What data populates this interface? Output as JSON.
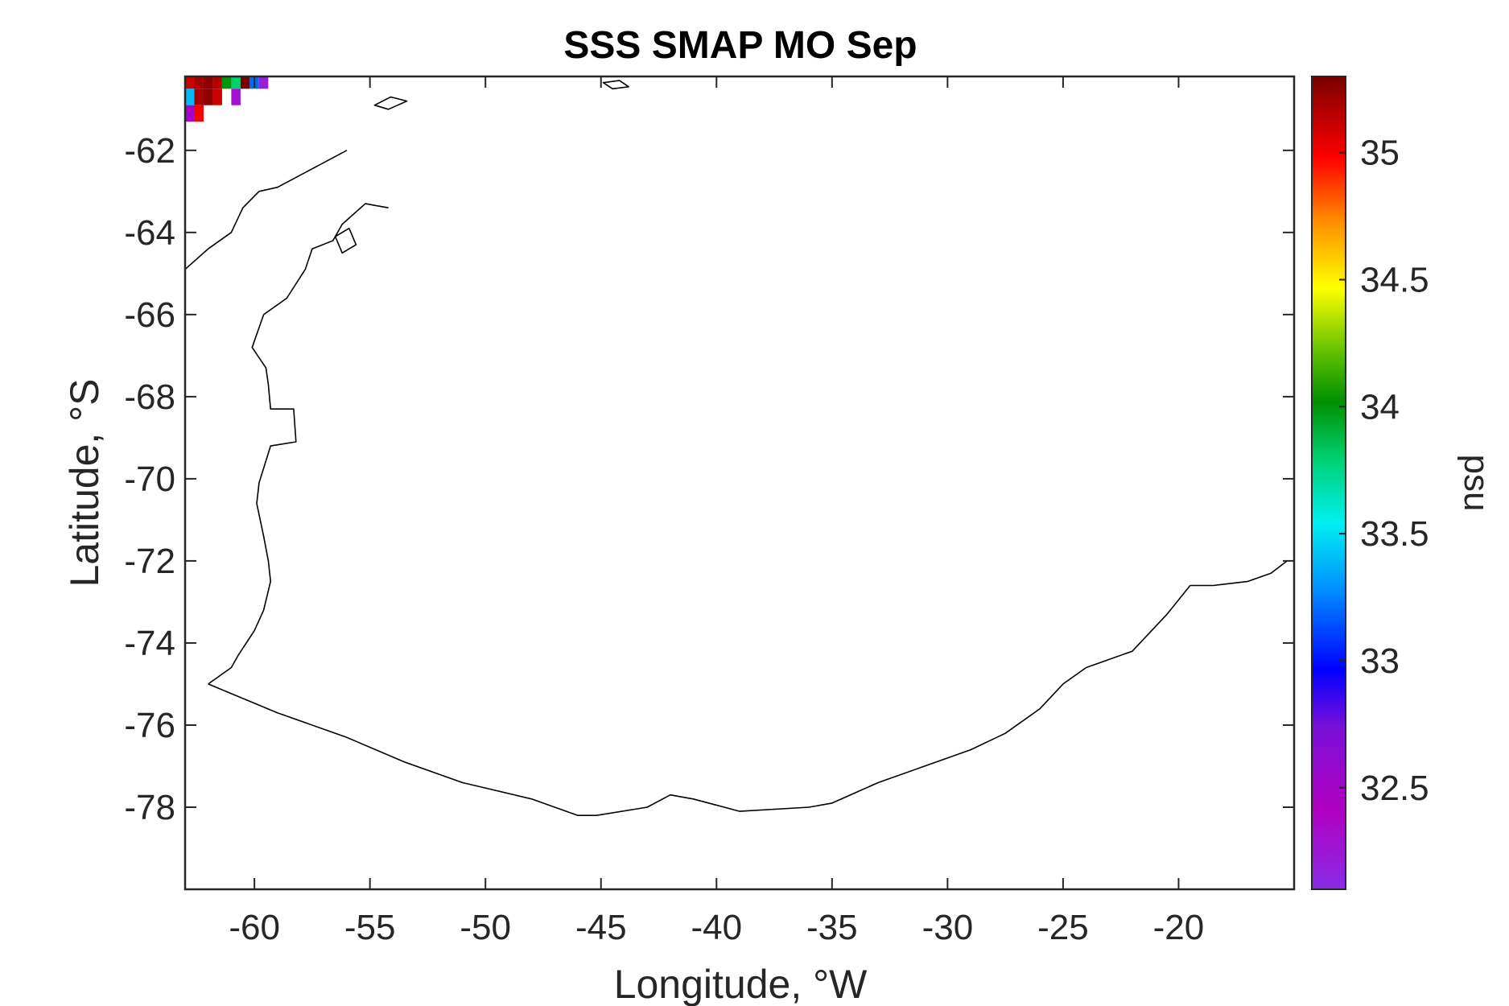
{
  "chart_data": {
    "type": "heatmap",
    "title": "SSS SMAP MO Sep",
    "xlabel": "Longitude, °W",
    "ylabel": "Latitude, °S",
    "xlim": [
      -63,
      -15
    ],
    "ylim": [
      -80,
      -60.2
    ],
    "x_ticks": [
      -60,
      -55,
      -50,
      -45,
      -40,
      -35,
      -30,
      -25,
      -20
    ],
    "x_tick_labels": [
      "-60",
      "-55",
      "-50",
      "-45",
      "-40",
      "-35",
      "-30",
      "-25",
      "-20"
    ],
    "y_ticks": [
      -62,
      -64,
      -66,
      -68,
      -70,
      -72,
      -74,
      -76,
      -78
    ],
    "y_tick_labels": [
      "-62",
      "-64",
      "-66",
      "-68",
      "-70",
      "-72",
      "-74",
      "-76",
      "-78"
    ],
    "colorbar": {
      "label": "psu",
      "range": [
        32.1,
        35.3
      ],
      "ticks": [
        32.5,
        33,
        33.5,
        34,
        34.5,
        35
      ],
      "tick_labels": [
        "32.5",
        "33",
        "33.5",
        "34",
        "34.5",
        "35"
      ],
      "colormap": "jet-like"
    },
    "coastline": [
      [
        -62,
        -75.0
      ],
      [
        -59,
        -75.7
      ],
      [
        -56,
        -76.3
      ],
      [
        -53.5,
        -76.9
      ],
      [
        -51,
        -77.4
      ],
      [
        -48,
        -77.8
      ],
      [
        -46,
        -78.2
      ],
      [
        -45.2,
        -78.2
      ],
      [
        -43,
        -78.0
      ],
      [
        -42,
        -77.7
      ],
      [
        -41,
        -77.8
      ],
      [
        -39,
        -78.1
      ],
      [
        -36,
        -78.0
      ],
      [
        -35,
        -77.9
      ],
      [
        -33,
        -77.4
      ],
      [
        -31,
        -77.0
      ],
      [
        -29,
        -76.6
      ],
      [
        -27.5,
        -76.2
      ],
      [
        -26,
        -75.6
      ],
      [
        -25,
        -75.0
      ],
      [
        -24,
        -74.6
      ],
      [
        -22,
        -74.2
      ],
      [
        -20.5,
        -73.3
      ],
      [
        -19.5,
        -72.6
      ],
      [
        -18.5,
        -72.6
      ],
      [
        -17,
        -72.5
      ],
      [
        -16,
        -72.3
      ],
      [
        -15.3,
        -72.0
      ]
    ],
    "peninsula_coast": [
      [
        -62,
        -75.0
      ],
      [
        -61,
        -74.6
      ],
      [
        -60.7,
        -74.3
      ],
      [
        -60,
        -73.7
      ],
      [
        -59.6,
        -73.2
      ],
      [
        -59.3,
        -72.5
      ],
      [
        -59.4,
        -72.0
      ],
      [
        -59.6,
        -71.4
      ],
      [
        -59.9,
        -70.6
      ],
      [
        -59.8,
        -70.1
      ],
      [
        -59.3,
        -69.2
      ],
      [
        -58.2,
        -69.1
      ],
      [
        -58.3,
        -68.3
      ],
      [
        -59.3,
        -68.3
      ],
      [
        -59.4,
        -67.7
      ],
      [
        -59.5,
        -67.3
      ],
      [
        -60.1,
        -66.8
      ],
      [
        -59.6,
        -66.0
      ],
      [
        -58.6,
        -65.6
      ],
      [
        -57.8,
        -64.9
      ],
      [
        -57.5,
        -64.4
      ],
      [
        -56.6,
        -64.2
      ],
      [
        -56.2,
        -63.8
      ],
      [
        -55.2,
        -63.3
      ],
      [
        -54.2,
        -63.4
      ]
    ],
    "peninsula_coast_2": [
      [
        -63,
        -64.9
      ],
      [
        -62,
        -64.4
      ],
      [
        -61,
        -64.0
      ],
      [
        -60.5,
        -63.4
      ],
      [
        -59.8,
        -63.0
      ],
      [
        -59.0,
        -62.9
      ],
      [
        -58.0,
        -62.6
      ],
      [
        -57.0,
        -62.3
      ],
      [
        -56.0,
        -62.0
      ]
    ],
    "islands": [
      [
        [
          -54.8,
          -60.9
        ],
        [
          -54.1,
          -60.7
        ],
        [
          -53.4,
          -60.8
        ],
        [
          -54.2,
          -61.0
        ],
        [
          -54.8,
          -60.9
        ]
      ],
      [
        [
          -44.9,
          -60.35
        ],
        [
          -44.2,
          -60.3
        ],
        [
          -43.8,
          -60.45
        ],
        [
          -44.5,
          -60.5
        ],
        [
          -44.9,
          -60.35
        ]
      ],
      [
        [
          -56.5,
          -64.1
        ],
        [
          -55.9,
          -63.9
        ],
        [
          -55.6,
          -64.3
        ],
        [
          -56.2,
          -64.5
        ],
        [
          -56.5,
          -64.1
        ]
      ]
    ],
    "data_cells": [
      {
        "lon": -62.8,
        "lat": -60.3,
        "value": 35.1
      },
      {
        "lon": -62.4,
        "lat": -60.3,
        "value": 35.2
      },
      {
        "lon": -62.0,
        "lat": -60.3,
        "value": 35.25
      },
      {
        "lon": -61.6,
        "lat": -60.3,
        "value": 35.15
      },
      {
        "lon": -61.2,
        "lat": -60.3,
        "value": 34.0
      },
      {
        "lon": -60.8,
        "lat": -60.3,
        "value": 33.8
      },
      {
        "lon": -60.4,
        "lat": -60.3,
        "value": 35.3
      },
      {
        "lon": -60.0,
        "lat": -60.3,
        "value": 33.2
      },
      {
        "lon": -59.6,
        "lat": -60.3,
        "value": 32.2
      },
      {
        "lon": -62.8,
        "lat": -60.7,
        "value": 33.4
      },
      {
        "lon": -62.4,
        "lat": -60.7,
        "value": 35.2
      },
      {
        "lon": -62.0,
        "lat": -60.7,
        "value": 35.25
      },
      {
        "lon": -61.6,
        "lat": -60.7,
        "value": 35.1
      },
      {
        "lon": -60.8,
        "lat": -60.7,
        "value": 32.3
      },
      {
        "lon": -62.8,
        "lat": -61.1,
        "value": 32.5
      },
      {
        "lon": -62.4,
        "lat": -61.1,
        "value": 35.0
      }
    ]
  }
}
